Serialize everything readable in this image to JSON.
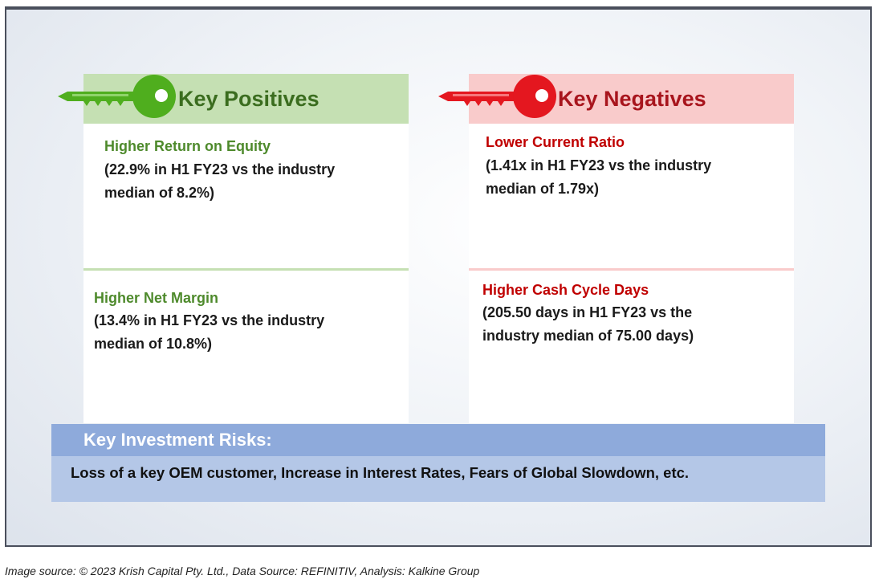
{
  "positives": {
    "heading": "Key Positives",
    "color": "#3b6d1f",
    "items": [
      {
        "title": "Higher Return on Equity",
        "line1": "(22.9% in H1 FY23 vs the industry",
        "line2": "median of 8.2%)"
      },
      {
        "title": "Higher Net Margin",
        "line1": "(13.4% in H1 FY23 vs the industry",
        "line2": "median of 10.8%)"
      }
    ]
  },
  "negatives": {
    "heading": "Key Negatives",
    "color": "#a8151d",
    "items": [
      {
        "title": "Lower Current Ratio",
        "line1": "(1.41x in H1 FY23 vs the industry",
        "line2": "median of 1.79x)"
      },
      {
        "title": "Higher Cash Cycle Days",
        "line1": "(205.50 days in H1 FY23 vs the",
        "line2": "industry median of 75.00 days)"
      }
    ]
  },
  "risks": {
    "heading": "Key Investment Risks:",
    "text": "Loss of a key OEM customer, Increase in Interest Rates, Fears of Global Slowdown, etc."
  },
  "source": "Image source: © 2023 Krish Capital Pty. Ltd., Data Source: REFINITIV, Analysis: Kalkine Group"
}
